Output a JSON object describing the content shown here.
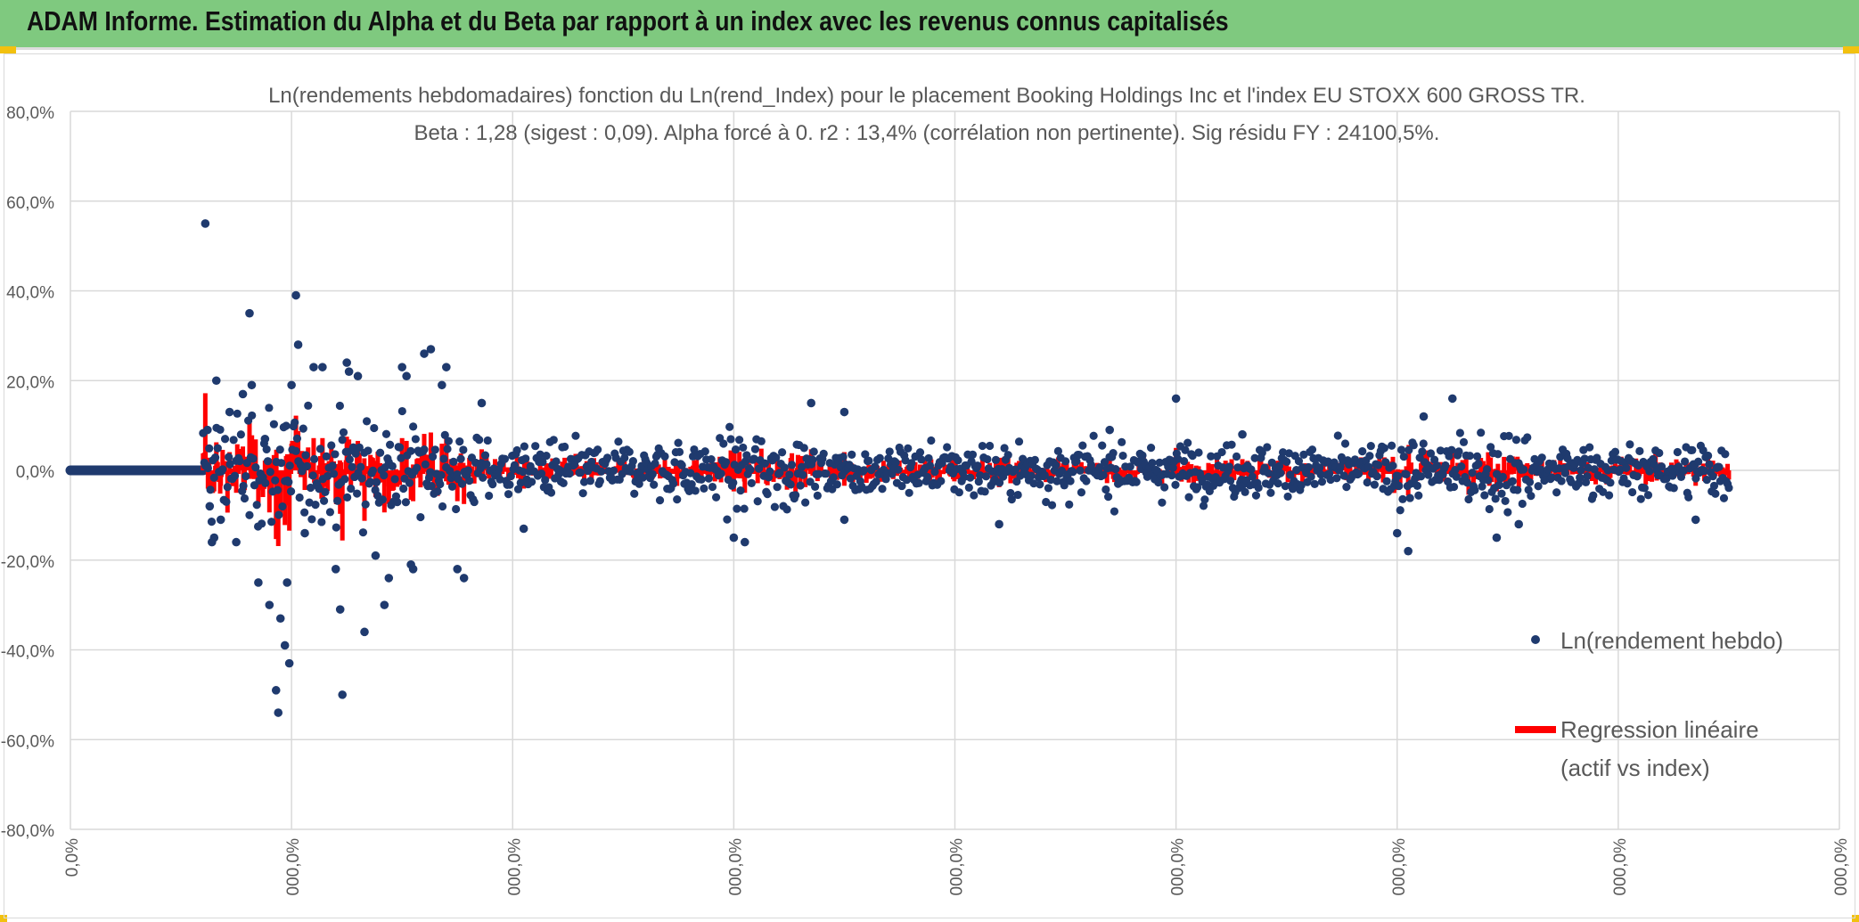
{
  "header": {
    "title": "ADAM Informe. Estimation du Alpha et du Beta par rapport à un index avec les revenus connus capitalisés"
  },
  "colors": {
    "banner": "#7fc97f",
    "points": "#1f3a6e",
    "regression": "#ff0000",
    "grid": "#d9d9d9"
  },
  "chart_data": {
    "type": "scatter",
    "title_line1": "Ln(rendements hebdomadaires) fonction du Ln(rend_Index) pour le placement Booking Holdings Inc et l'index EU STOXX 600 GROSS TR.",
    "title_line2": "Beta : 1,28 (sigest : 0,09).  Alpha forcé à 0. r2 : 13,4% (corrélation non pertinente). Sig résidu FY : 24100,5%.",
    "ylim": [
      -80,
      80
    ],
    "y_ticks": [
      "80,0%",
      "60,0%",
      "40,0%",
      "20,0%",
      "0,0%",
      "-20,0%",
      "-40,0%",
      "-60,0%",
      "-80,0%"
    ],
    "y_tick_values": [
      80,
      60,
      40,
      20,
      0,
      -20,
      -40,
      -60,
      -80
    ],
    "x_ticks": [
      "0,0%",
      "000,0%",
      "000,0%",
      "000,0%",
      "000,0%",
      "000,0%",
      "000,0%",
      "000,0%",
      "000,0%"
    ],
    "x_tick_values": [
      0,
      1,
      2,
      3,
      4,
      5,
      6,
      7,
      8
    ],
    "xlim": [
      0,
      8
    ],
    "series": [
      {
        "name": "Ln(rendement hebdo)",
        "kind": "points"
      },
      {
        "name": "Regression linéaire",
        "name_line2": "(actif vs index)",
        "kind": "regression"
      }
    ],
    "beta": 1.28,
    "zero_segment_x": [
      0,
      0.6
    ],
    "data_x_range": [
      0.6,
      7.5
    ],
    "outliers": [
      [
        0.61,
        55
      ],
      [
        0.66,
        20
      ],
      [
        0.62,
        9
      ],
      [
        0.63,
        -8
      ],
      [
        0.65,
        -15
      ],
      [
        0.64,
        -16
      ],
      [
        0.68,
        -11
      ],
      [
        0.72,
        13
      ],
      [
        0.75,
        -16
      ],
      [
        0.78,
        17
      ],
      [
        0.81,
        35
      ],
      [
        0.82,
        19
      ],
      [
        0.85,
        -25
      ],
      [
        0.88,
        7
      ],
      [
        0.9,
        -30
      ],
      [
        0.93,
        -49
      ],
      [
        0.94,
        -54
      ],
      [
        0.95,
        -33
      ],
      [
        0.97,
        -39
      ],
      [
        0.98,
        -25
      ],
      [
        0.99,
        -43
      ],
      [
        1.0,
        19
      ],
      [
        1.02,
        39
      ],
      [
        1.03,
        28
      ],
      [
        1.06,
        -14
      ],
      [
        1.1,
        23
      ],
      [
        1.14,
        23
      ],
      [
        1.2,
        -22
      ],
      [
        1.22,
        -31
      ],
      [
        1.23,
        -50
      ],
      [
        1.25,
        24
      ],
      [
        1.26,
        22
      ],
      [
        1.3,
        21
      ],
      [
        1.33,
        -36
      ],
      [
        1.38,
        -19
      ],
      [
        1.42,
        -30
      ],
      [
        1.44,
        -24
      ],
      [
        1.5,
        23
      ],
      [
        1.52,
        21
      ],
      [
        1.54,
        -21
      ],
      [
        1.55,
        -22
      ],
      [
        1.6,
        26
      ],
      [
        1.63,
        27
      ],
      [
        1.68,
        19
      ],
      [
        1.7,
        23
      ],
      [
        1.75,
        -22
      ],
      [
        1.78,
        -24
      ],
      [
        1.86,
        15
      ],
      [
        2.05,
        -13
      ],
      [
        3.0,
        -15
      ],
      [
        3.05,
        -16
      ],
      [
        3.35,
        15
      ],
      [
        3.5,
        13
      ],
      [
        3.5,
        -11
      ],
      [
        4.2,
        -12
      ],
      [
        5.0,
        16
      ],
      [
        6.0,
        -14
      ],
      [
        6.05,
        -18
      ],
      [
        6.12,
        12
      ],
      [
        6.25,
        16
      ],
      [
        6.45,
        -15
      ],
      [
        6.55,
        -12
      ],
      [
        7.35,
        -11
      ],
      [
        4.7,
        9
      ],
      [
        5.3,
        8
      ]
    ]
  }
}
